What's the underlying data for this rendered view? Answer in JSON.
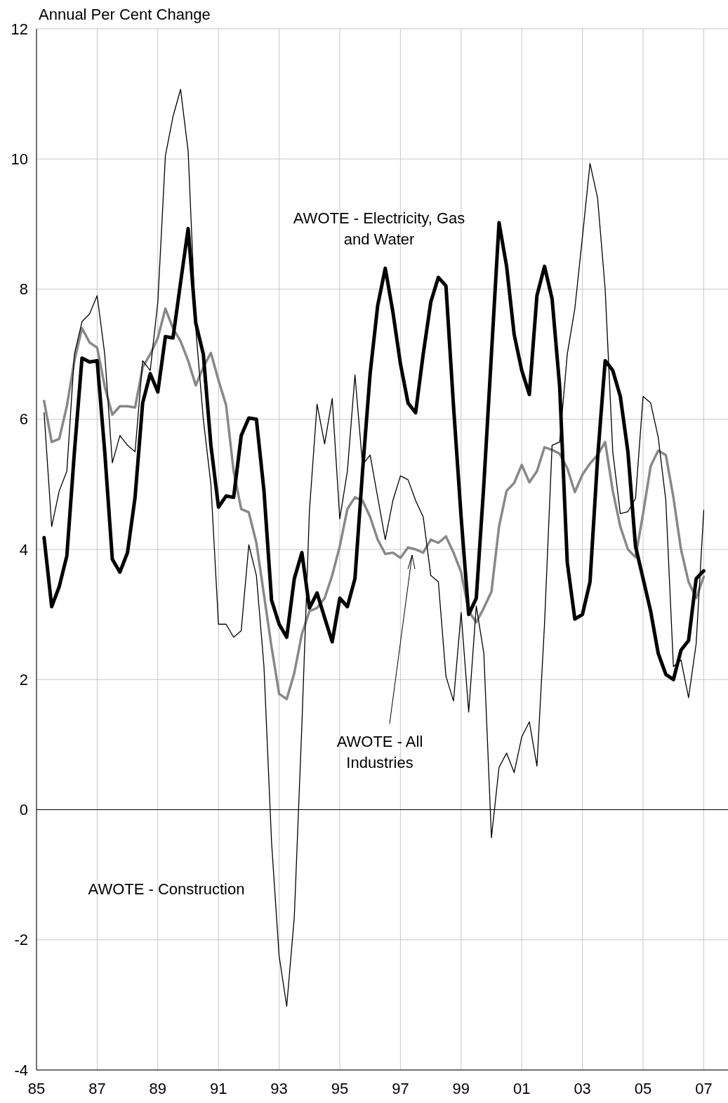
{
  "chart_data": {
    "type": "line",
    "ylabel": "Annual Per Cent Change",
    "x": [
      1985.25,
      1985.5,
      1985.75,
      1986,
      1986.25,
      1986.5,
      1986.75,
      1987,
      1987.25,
      1987.5,
      1987.75,
      1988,
      1988.25,
      1988.5,
      1988.75,
      1989,
      1989.25,
      1989.5,
      1989.75,
      1990,
      1990.25,
      1990.5,
      1990.75,
      1991,
      1991.25,
      1991.5,
      1991.75,
      1992,
      1992.25,
      1992.5,
      1992.75,
      1993,
      1993.25,
      1993.5,
      1993.75,
      1994,
      1994.25,
      1994.5,
      1994.75,
      1995,
      1995.25,
      1995.5,
      1995.75,
      1996,
      1996.25,
      1996.5,
      1996.75,
      1997,
      1997.25,
      1997.5,
      1997.75,
      1998,
      1998.25,
      1998.5,
      1998.75,
      1999,
      1999.25,
      1999.5,
      1999.75,
      2000,
      2000.25,
      2000.5,
      2000.75,
      2001,
      2001.25,
      2001.5,
      2001.75,
      2002,
      2002.25,
      2002.5,
      2002.75,
      2003,
      2003.25,
      2003.5,
      2003.75,
      2004,
      2004.25,
      2004.5,
      2004.75,
      2005,
      2005.25,
      2005.5,
      2005.75,
      2006,
      2006.25,
      2006.5,
      2006.75,
      2007
    ],
    "series": [
      {
        "name": "AWOTE - All Industries",
        "color": "#888888",
        "values": [
          6.28,
          5.65,
          5.7,
          6.2,
          6.9,
          7.4,
          7.18,
          7.1,
          6.5,
          6.07,
          6.2,
          6.2,
          6.18,
          6.8,
          7.0,
          7.25,
          7.7,
          7.4,
          7.2,
          6.9,
          6.52,
          6.8,
          7.02,
          6.6,
          6.22,
          5.2,
          4.62,
          4.57,
          4.1,
          3.3,
          2.5,
          1.78,
          1.7,
          2.1,
          2.7,
          3.05,
          3.1,
          3.25,
          3.6,
          4.05,
          4.62,
          4.8,
          4.75,
          4.5,
          4.15,
          3.93,
          3.95,
          3.87,
          4.03,
          4.0,
          3.95,
          4.15,
          4.1,
          4.2,
          3.95,
          3.65,
          3.05,
          2.88,
          3.1,
          3.35,
          4.35,
          4.9,
          5.02,
          5.3,
          5.03,
          5.2,
          5.57,
          5.53,
          5.47,
          5.25,
          4.88,
          5.15,
          5.32,
          5.45,
          5.65,
          4.9,
          4.35,
          4.0,
          3.88,
          4.55,
          5.28,
          5.52,
          5.45,
          4.8,
          4.0,
          3.5,
          3.25,
          3.58
        ]
      },
      {
        "name": "AWOTE - Electricity, Gas and Water",
        "color": "#000000",
        "values": [
          4.18,
          3.12,
          3.43,
          3.9,
          5.5,
          6.94,
          6.88,
          6.9,
          5.5,
          3.85,
          3.65,
          3.95,
          4.8,
          6.25,
          6.7,
          6.42,
          7.27,
          7.25,
          8.1,
          8.93,
          7.48,
          7.0,
          5.6,
          4.65,
          4.82,
          4.8,
          5.75,
          6.02,
          6.0,
          4.9,
          3.22,
          2.85,
          2.65,
          3.55,
          3.95,
          3.1,
          3.33,
          2.95,
          2.58,
          3.25,
          3.12,
          3.55,
          5.2,
          6.7,
          7.75,
          8.32,
          7.65,
          6.85,
          6.25,
          6.1,
          7.0,
          7.8,
          8.18,
          8.05,
          6.2,
          4.5,
          3.0,
          3.25,
          5.0,
          7.0,
          9.02,
          8.35,
          7.3,
          6.75,
          6.38,
          7.9,
          8.35,
          7.85,
          6.5,
          3.8,
          2.93,
          3.0,
          3.5,
          5.4,
          6.9,
          6.75,
          6.35,
          5.5,
          4.05,
          3.55,
          3.05,
          2.4,
          2.08,
          2.0,
          2.45,
          2.6,
          3.55,
          3.67
        ]
      },
      {
        "name": "AWOTE - Construction",
        "color": "#000000",
        "values": [
          6.1,
          4.35,
          4.9,
          5.2,
          7.0,
          7.5,
          7.62,
          7.9,
          7.0,
          5.33,
          5.75,
          5.6,
          5.5,
          6.9,
          6.75,
          7.8,
          10.05,
          10.65,
          11.07,
          10.12,
          7.4,
          6.0,
          5.0,
          2.85,
          2.85,
          2.65,
          2.75,
          4.07,
          3.6,
          2.2,
          -0.5,
          -2.25,
          -3.02,
          -1.65,
          1.3,
          4.6,
          6.23,
          5.62,
          6.32,
          4.47,
          5.2,
          6.68,
          5.3,
          5.45,
          4.8,
          4.15,
          4.75,
          5.13,
          5.07,
          4.75,
          4.5,
          3.6,
          3.5,
          2.05,
          1.67,
          3.03,
          1.5,
          3.13,
          2.4,
          -0.43,
          0.65,
          0.87,
          0.57,
          1.12,
          1.35,
          0.67,
          2.85,
          5.6,
          5.65,
          7.0,
          7.7,
          8.8,
          9.93,
          9.4,
          8.0,
          5.5,
          4.55,
          4.58,
          4.78,
          6.35,
          6.25,
          5.72,
          4.75,
          2.2,
          2.3,
          1.72,
          2.55,
          4.6
        ]
      }
    ],
    "xlim": [
      1985,
      2007.8
    ],
    "xticks": [
      {
        "value": 1985,
        "label": "85"
      },
      {
        "value": 1987,
        "label": "87"
      },
      {
        "value": 1989,
        "label": "89"
      },
      {
        "value": 1991,
        "label": "91"
      },
      {
        "value": 1993,
        "label": "93"
      },
      {
        "value": 1995,
        "label": "95"
      },
      {
        "value": 1997,
        "label": "97"
      },
      {
        "value": 1999,
        "label": "99"
      },
      {
        "value": 2001,
        "label": "01"
      },
      {
        "value": 2003,
        "label": "03"
      },
      {
        "value": 2005,
        "label": "05"
      },
      {
        "value": 2007,
        "label": "07"
      }
    ],
    "ylim": [
      -4,
      12
    ],
    "yticks": [
      -4,
      -2,
      0,
      2,
      4,
      6,
      8,
      10,
      12
    ],
    "ref_lines": [
      {
        "axis": "y",
        "value": 0,
        "color": "#000000"
      }
    ],
    "grid": true,
    "legend": false,
    "marker": "none",
    "line_style": "solid"
  }
}
